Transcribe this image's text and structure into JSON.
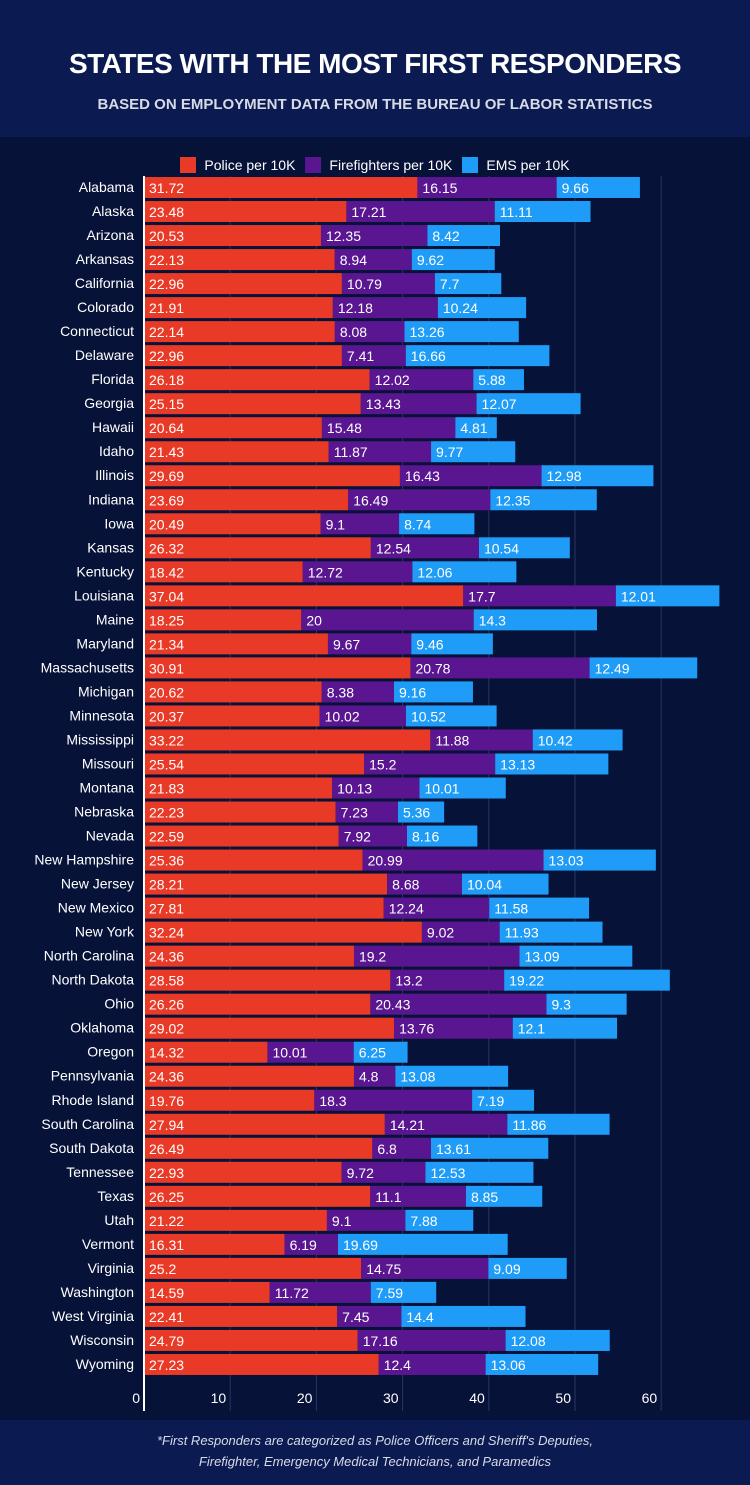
{
  "header": {
    "title": "STATES WITH THE MOST FIRST RESPONDERS",
    "subtitle": "BASED ON EMPLOYMENT DATA FROM THE BUREAU OF LABOR STATISTICS"
  },
  "footer": {
    "note_line1": "*First Responders are categorized as Police Officers and Sheriff's Deputies,",
    "note_line2": "Firefighter, Emergency Medical Technicians, and Paramedics"
  },
  "chart_data": {
    "type": "bar",
    "orientation": "horizontal",
    "stacked": true,
    "xlim": [
      0,
      70
    ],
    "x_ticks": [
      0,
      10,
      20,
      30,
      40,
      50,
      60
    ],
    "grid": true,
    "legend_placement": "top",
    "categories": [
      "Alabama",
      "Alaska",
      "Arizona",
      "Arkansas",
      "California",
      "Colorado",
      "Connecticut",
      "Delaware",
      "Florida",
      "Georgia",
      "Hawaii",
      "Idaho",
      "Illinois",
      "Indiana",
      "Iowa",
      "Kansas",
      "Kentucky",
      "Louisiana",
      "Maine",
      "Maryland",
      "Massachusetts",
      "Michigan",
      "Minnesota",
      "Mississippi",
      "Missouri",
      "Montana",
      "Nebraska",
      "Nevada",
      "New Hampshire",
      "New Jersey",
      "New Mexico",
      "New York",
      "North Carolina",
      "North Dakota",
      "Ohio",
      "Oklahoma",
      "Oregon",
      "Pennsylvania",
      "Rhode Island",
      "South Carolina",
      "South Dakota",
      "Tennessee",
      "Texas",
      "Utah",
      "Vermont",
      "Virginia",
      "Washington",
      "West Virginia",
      "Wisconsin",
      "Wyoming"
    ],
    "series": [
      {
        "name": "Police per 10K",
        "color": "#e83a26",
        "values": [
          31.72,
          23.48,
          20.53,
          22.13,
          22.96,
          21.91,
          22.14,
          22.96,
          26.18,
          25.15,
          20.64,
          21.43,
          29.69,
          23.69,
          20.49,
          26.32,
          18.42,
          37.04,
          18.25,
          21.34,
          30.91,
          20.62,
          20.37,
          33.22,
          25.54,
          21.83,
          22.23,
          22.59,
          25.36,
          28.21,
          27.81,
          32.24,
          24.36,
          28.58,
          26.26,
          29.02,
          14.32,
          24.36,
          19.76,
          27.94,
          26.49,
          22.93,
          26.25,
          21.22,
          16.31,
          25.2,
          14.59,
          22.41,
          24.79,
          27.23
        ]
      },
      {
        "name": "Firefighters per 10K",
        "color": "#5a1690",
        "values": [
          16.15,
          17.21,
          12.35,
          8.94,
          10.79,
          12.18,
          8.08,
          7.41,
          12.02,
          13.43,
          15.48,
          11.87,
          16.43,
          16.49,
          9.1,
          12.54,
          12.72,
          17.7,
          20,
          9.67,
          20.78,
          8.38,
          10.02,
          11.88,
          15.2,
          10.13,
          7.23,
          7.92,
          20.99,
          8.68,
          12.24,
          9.02,
          19.2,
          13.2,
          20.43,
          13.76,
          10.01,
          4.8,
          18.3,
          14.21,
          6.8,
          9.72,
          11.1,
          9.1,
          6.19,
          14.75,
          11.72,
          7.45,
          17.16,
          12.4
        ]
      },
      {
        "name": "EMS per 10K",
        "color": "#1e9cf7",
        "values": [
          9.66,
          11.11,
          8.42,
          9.62,
          7.7,
          10.24,
          13.26,
          16.66,
          5.88,
          12.07,
          4.81,
          9.77,
          12.98,
          12.35,
          8.74,
          10.54,
          12.06,
          12.01,
          14.3,
          9.46,
          12.49,
          9.16,
          10.52,
          10.42,
          13.13,
          10.01,
          5.36,
          8.16,
          13.03,
          10.04,
          11.58,
          11.93,
          13.09,
          19.22,
          9.3,
          12.1,
          6.25,
          13.08,
          7.19,
          11.86,
          13.61,
          12.53,
          8.85,
          7.88,
          19.69,
          9.09,
          7.59,
          14.4,
          12.08,
          13.06
        ]
      }
    ]
  }
}
